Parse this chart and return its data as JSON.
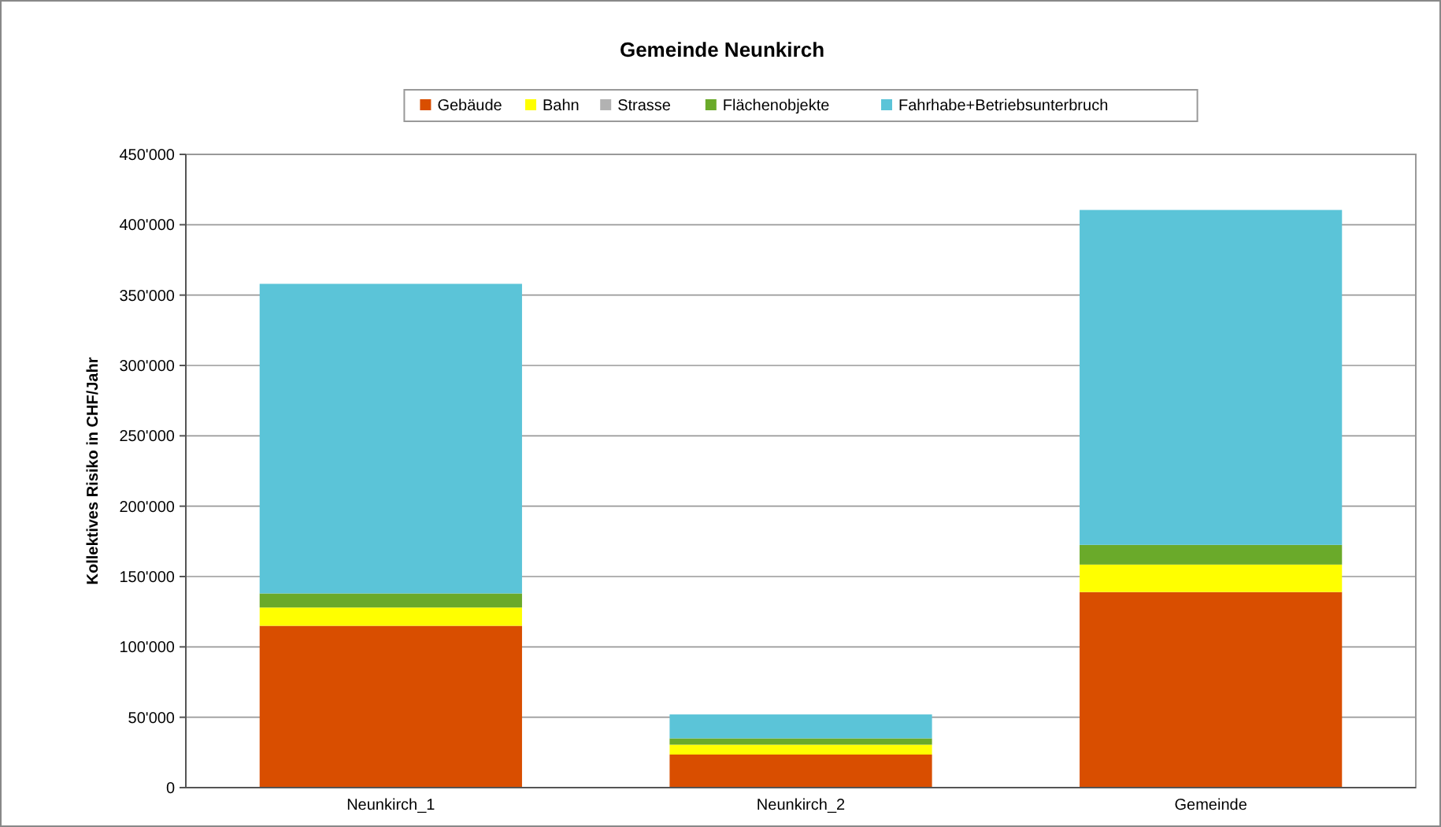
{
  "chart_data": {
    "type": "bar",
    "title": "Gemeinde Neunkirch",
    "ylabel": "Kollektives Risiko in CHF/Jahr",
    "categories": [
      "Neunkirch_1",
      "Neunkirch_2",
      "Gemeinde"
    ],
    "stacked": true,
    "legend": "top",
    "grid": "y",
    "ylim": [
      0,
      450000
    ],
    "yticks": [
      {
        "value": 0,
        "label": "0"
      },
      {
        "value": 50000,
        "label": "50'000"
      },
      {
        "value": 100000,
        "label": "100'000"
      },
      {
        "value": 150000,
        "label": "150'000"
      },
      {
        "value": 200000,
        "label": "200'000"
      },
      {
        "value": 250000,
        "label": "250'000"
      },
      {
        "value": 300000,
        "label": "300'000"
      },
      {
        "value": 350000,
        "label": "350'000"
      },
      {
        "value": 400000,
        "label": "400'000"
      },
      {
        "value": 450000,
        "label": "450'000"
      }
    ],
    "series": [
      {
        "name": "Gebäude",
        "color": "#d94e00",
        "values": [
          115000,
          23500,
          139000
        ]
      },
      {
        "name": "Bahn",
        "color": "#ffff00",
        "values": [
          13000,
          7000,
          19500
        ]
      },
      {
        "name": "Strasse",
        "color": "#b2b2b2",
        "values": [
          0,
          0,
          0
        ]
      },
      {
        "name": "Flächenobjekte",
        "color": "#6aaa2a",
        "values": [
          10000,
          4500,
          14000
        ]
      },
      {
        "name": "Fahrhabe+Betriebsunterbruch",
        "color": "#5bc4d8",
        "values": [
          220000,
          17000,
          238000
        ]
      }
    ]
  }
}
